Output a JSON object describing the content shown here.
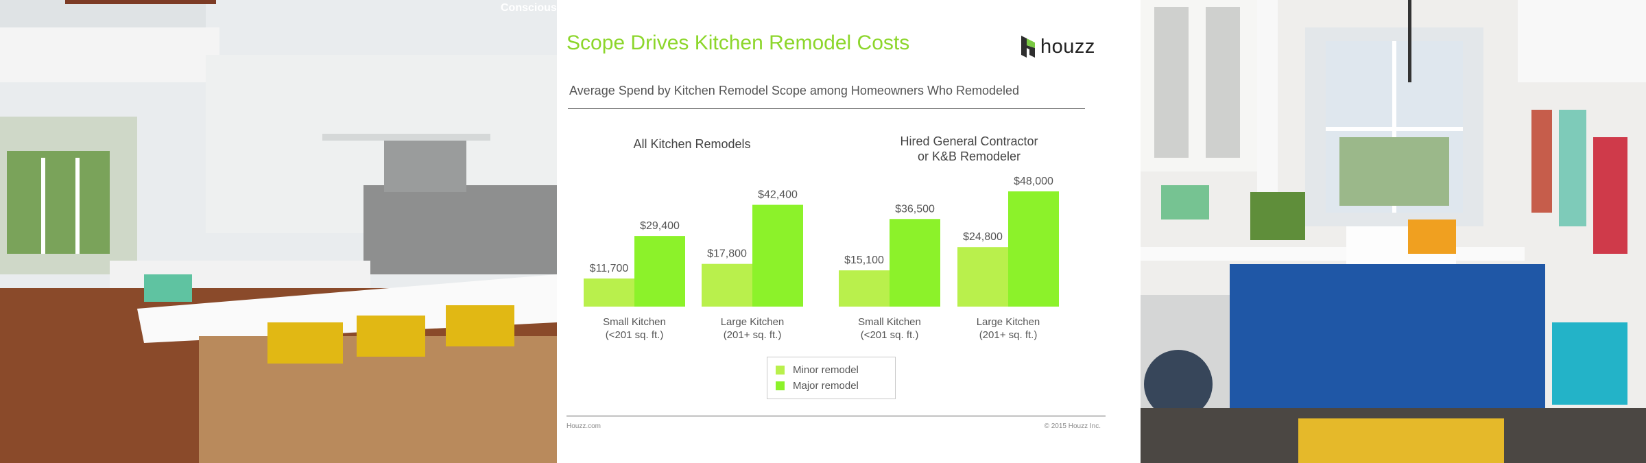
{
  "watermark": "Conscious",
  "title": "Scope Drives Kitchen Remodel Costs",
  "logo": {
    "text": "houzz",
    "icon": "houzz-logo-icon"
  },
  "subtitle": "Average Spend by Kitchen Remodel Scope among Homeowners Who Remodeled",
  "colors": {
    "minor": "#b9f04c",
    "major": "#8cf22a",
    "title": "#8cd62b"
  },
  "legend": {
    "minor": "Minor remodel",
    "major": "Major remodel"
  },
  "footer": {
    "left": "Houzz.com",
    "right": "© 2015 Houzz Inc."
  },
  "chart_data": [
    {
      "type": "bar",
      "title": "All Kitchen Remodels",
      "categories": [
        "Small Kitchen\n(<201 sq. ft.)",
        "Large Kitchen\n(201+ sq. ft.)"
      ],
      "series": [
        {
          "name": "Minor remodel",
          "values": [
            11700,
            17800
          ],
          "labels": [
            "$11,700",
            "$17,800"
          ]
        },
        {
          "name": "Major remodel",
          "values": [
            29400,
            42400
          ],
          "labels": [
            "$29,400",
            "$42,400"
          ]
        }
      ],
      "ylim": [
        0,
        48000
      ]
    },
    {
      "type": "bar",
      "title": "Hired General Contractor\nor K&B Remodeler",
      "categories": [
        "Small Kitchen\n(<201 sq. ft.)",
        "Large Kitchen\n(201+ sq. ft.)"
      ],
      "series": [
        {
          "name": "Minor remodel",
          "values": [
            15100,
            24800
          ],
          "labels": [
            "$15,100",
            "$24,800"
          ]
        },
        {
          "name": "Major remodel",
          "values": [
            36500,
            48000
          ],
          "labels": [
            "$36,500",
            "$48,000"
          ]
        }
      ],
      "ylim": [
        0,
        48000
      ]
    }
  ]
}
